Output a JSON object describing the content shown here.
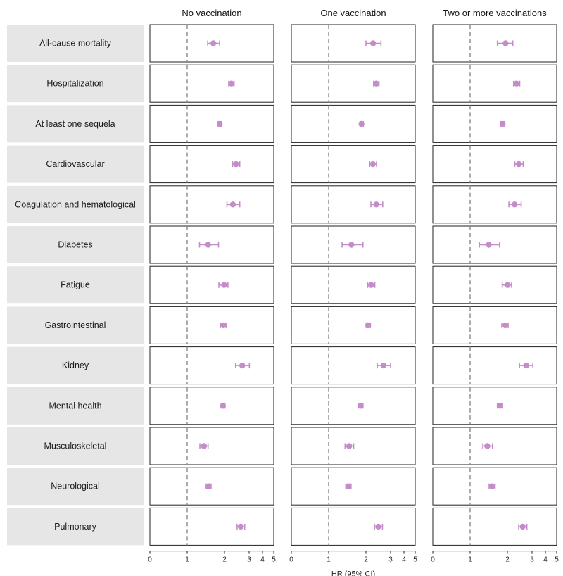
{
  "chart_data": {
    "type": "forest",
    "xlabel": "HR (95% CI)",
    "x_ticks": [
      0,
      1,
      2,
      3,
      4,
      5
    ],
    "reference_line": 1,
    "point_color": "#c48cc8",
    "label_bg_color": "#e6e6e6",
    "categories": [
      "All-cause mortality",
      "Hospitalization",
      "At least one sequela",
      "Cardiovascular",
      "Coagulation and hematological",
      "Diabetes",
      "Fatigue",
      "Gastrointestinal",
      "Kidney",
      "Mental health",
      "Musculoskeletal",
      "Neurological",
      "Pulmonary"
    ],
    "panels": [
      {
        "title": "No vaccination",
        "estimates": [
          {
            "hr": 1.7,
            "lo": 1.55,
            "hi": 1.87
          },
          {
            "hr": 2.28,
            "lo": 2.17,
            "hi": 2.39
          },
          {
            "hr": 1.87,
            "lo": 1.83,
            "hi": 1.91
          },
          {
            "hr": 2.47,
            "lo": 2.33,
            "hi": 2.62
          },
          {
            "hr": 2.34,
            "lo": 2.1,
            "hi": 2.62
          },
          {
            "hr": 1.56,
            "lo": 1.33,
            "hi": 1.84
          },
          {
            "hr": 1.99,
            "lo": 1.85,
            "hi": 2.14
          },
          {
            "hr": 1.97,
            "lo": 1.89,
            "hi": 2.06
          },
          {
            "hr": 2.72,
            "lo": 2.45,
            "hi": 3.02
          },
          {
            "hr": 1.96,
            "lo": 1.91,
            "hi": 2.02
          },
          {
            "hr": 1.45,
            "lo": 1.34,
            "hi": 1.56
          },
          {
            "hr": 1.57,
            "lo": 1.51,
            "hi": 1.64
          },
          {
            "hr": 2.66,
            "lo": 2.51,
            "hi": 2.82
          }
        ]
      },
      {
        "title": "One vaccination",
        "estimates": [
          {
            "hr": 2.29,
            "lo": 2.0,
            "hi": 2.61
          },
          {
            "hr": 2.42,
            "lo": 2.31,
            "hi": 2.53
          },
          {
            "hr": 1.88,
            "lo": 1.84,
            "hi": 1.93
          },
          {
            "hr": 2.28,
            "lo": 2.15,
            "hi": 2.43
          },
          {
            "hr": 2.42,
            "lo": 2.2,
            "hi": 2.68
          },
          {
            "hr": 1.61,
            "lo": 1.36,
            "hi": 1.92
          },
          {
            "hr": 2.21,
            "lo": 2.07,
            "hi": 2.36
          },
          {
            "hr": 2.09,
            "lo": 2.01,
            "hi": 2.18
          },
          {
            "hr": 2.71,
            "lo": 2.46,
            "hi": 3.0
          },
          {
            "hr": 1.86,
            "lo": 1.8,
            "hi": 1.92
          },
          {
            "hr": 1.55,
            "lo": 1.44,
            "hi": 1.67
          },
          {
            "hr": 1.53,
            "lo": 1.46,
            "hi": 1.6
          },
          {
            "hr": 2.5,
            "lo": 2.35,
            "hi": 2.67
          }
        ]
      },
      {
        "title": "Two or more vaccinations",
        "estimates": [
          {
            "hr": 1.95,
            "lo": 1.73,
            "hi": 2.22
          },
          {
            "hr": 2.37,
            "lo": 2.25,
            "hi": 2.5
          },
          {
            "hr": 1.87,
            "lo": 1.82,
            "hi": 1.92
          },
          {
            "hr": 2.46,
            "lo": 2.3,
            "hi": 2.64
          },
          {
            "hr": 2.29,
            "lo": 2.06,
            "hi": 2.56
          },
          {
            "hr": 1.5,
            "lo": 1.25,
            "hi": 1.79
          },
          {
            "hr": 2.01,
            "lo": 1.86,
            "hi": 2.17
          },
          {
            "hr": 1.94,
            "lo": 1.85,
            "hi": 2.03
          },
          {
            "hr": 2.76,
            "lo": 2.49,
            "hi": 3.06
          },
          {
            "hr": 1.8,
            "lo": 1.73,
            "hi": 1.87
          },
          {
            "hr": 1.46,
            "lo": 1.34,
            "hi": 1.6
          },
          {
            "hr": 1.59,
            "lo": 1.51,
            "hi": 1.67
          },
          {
            "hr": 2.62,
            "lo": 2.46,
            "hi": 2.79
          }
        ]
      }
    ]
  }
}
